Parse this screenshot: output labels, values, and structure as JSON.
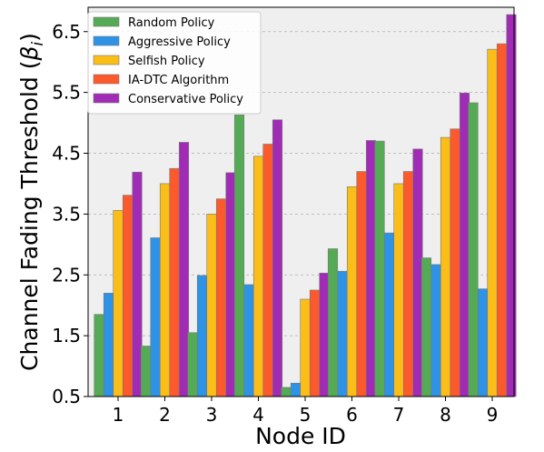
{
  "chart_data": {
    "type": "bar",
    "title": "",
    "xlabel": "Node ID",
    "ylabel_main": "Channel Fading Threshold (",
    "ylabel_sym": "β",
    "ylabel_sub": "i",
    "ylabel_end": ")",
    "ylim": [
      0.5,
      6.9
    ],
    "yticks": [
      "0.5",
      "1.5",
      "2.5",
      "3.5",
      "4.5",
      "5.5",
      "6.5"
    ],
    "categories": [
      "1",
      "2",
      "3",
      "4",
      "5",
      "6",
      "7",
      "8",
      "9"
    ],
    "grid": "horizontal dashed",
    "legend_position": "top-left",
    "background": "#efefef",
    "series": [
      {
        "name": "Random Policy",
        "color": "#55aa55",
        "values": [
          1.85,
          1.33,
          1.55,
          5.13,
          0.65,
          2.93,
          4.7,
          2.78,
          5.33
        ]
      },
      {
        "name": "Aggressive Policy",
        "color": "#2e93e6",
        "values": [
          2.2,
          3.11,
          2.49,
          2.34,
          0.72,
          2.56,
          3.19,
          2.67,
          2.27
        ]
      },
      {
        "name": "Selfish Policy",
        "color": "#fbbd18",
        "values": [
          3.56,
          4.0,
          3.5,
          4.45,
          2.1,
          3.95,
          4.0,
          4.76,
          6.21
        ]
      },
      {
        "name": "IA-DTC Algorithm",
        "color": "#fc5a2c",
        "values": [
          3.81,
          4.25,
          3.75,
          4.65,
          2.25,
          4.2,
          4.2,
          4.9,
          6.3
        ]
      },
      {
        "name": "Conservative Policy",
        "color": "#a02cb5",
        "values": [
          4.19,
          4.68,
          4.18,
          5.05,
          2.53,
          4.71,
          4.57,
          5.49,
          6.78
        ]
      }
    ]
  }
}
